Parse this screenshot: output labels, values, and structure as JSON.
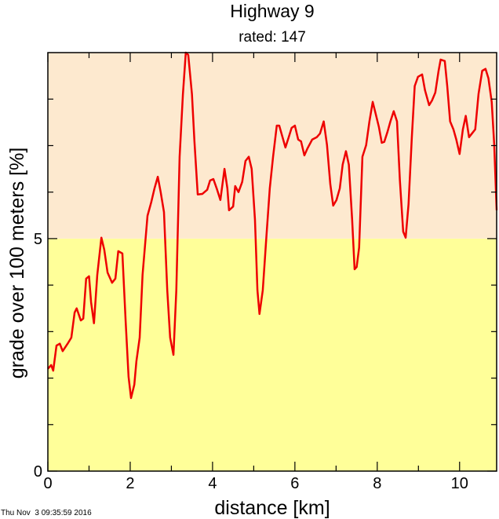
{
  "chart_data": {
    "type": "line",
    "title": "Highway 9",
    "subtitle": "rated: 147",
    "x_label": "distance [km]",
    "y_label": "grade over 100 meters [%]",
    "footer": "Thu Nov  3 09:35:59 2016",
    "xlim": [
      0,
      10.9
    ],
    "ylim": [
      0,
      9
    ],
    "xticks": [
      0,
      2,
      4,
      6,
      8,
      10
    ],
    "yticks": [
      0,
      5
    ],
    "x_minor_ticks": [
      1,
      3,
      5,
      7,
      9
    ],
    "y_minor_ticks": [
      1,
      2,
      3,
      4,
      6,
      7,
      8
    ],
    "bands": [
      {
        "from": 0,
        "to": 5,
        "color": "#ffff99"
      },
      {
        "from": 5,
        "to": 9,
        "color": "#fde9cf"
      }
    ],
    "color": "#ee0000",
    "x": [
      0,
      0.08,
      0.13,
      0.21,
      0.29,
      0.36,
      0.48,
      0.57,
      0.65,
      0.7,
      0.8,
      0.86,
      0.93,
      1.0,
      1.05,
      1.12,
      1.2,
      1.3,
      1.37,
      1.45,
      1.56,
      1.64,
      1.71,
      1.81,
      1.89,
      1.96,
      2.02,
      2.1,
      2.15,
      2.23,
      2.3,
      2.42,
      2.51,
      2.59,
      2.67,
      2.74,
      2.82,
      2.9,
      2.97,
      3.05,
      3.12,
      3.2,
      3.28,
      3.35,
      3.41,
      3.5,
      3.56,
      3.64,
      3.75,
      3.87,
      3.94,
      4.02,
      4.1,
      4.19,
      4.29,
      4.36,
      4.4,
      4.5,
      4.55,
      4.63,
      4.72,
      4.8,
      4.88,
      4.95,
      5.03,
      5.09,
      5.14,
      5.22,
      5.31,
      5.39,
      5.47,
      5.56,
      5.62,
      5.7,
      5.77,
      5.85,
      5.92,
      6.0,
      6.08,
      6.15,
      6.23,
      6.3,
      6.42,
      6.53,
      6.61,
      6.7,
      6.78,
      6.86,
      6.93,
      7.01,
      7.09,
      7.16,
      7.24,
      7.31,
      7.39,
      7.45,
      7.5,
      7.56,
      7.64,
      7.73,
      7.81,
      7.89,
      7.96,
      8.04,
      8.11,
      8.17,
      8.25,
      8.32,
      8.4,
      8.48,
      8.55,
      8.63,
      8.69,
      8.76,
      8.84,
      8.91,
      8.99,
      9.09,
      9.16,
      9.26,
      9.33,
      9.41,
      9.49,
      9.54,
      9.64,
      9.7,
      9.77,
      9.85,
      9.92,
      10.0,
      10.08,
      10.15,
      10.23,
      10.3,
      10.38,
      10.46,
      10.55,
      10.63,
      10.7,
      10.78,
      10.84,
      10.9
    ],
    "values": [
      2.2,
      2.28,
      2.16,
      2.7,
      2.74,
      2.58,
      2.74,
      2.87,
      3.41,
      3.5,
      3.24,
      3.28,
      4.14,
      4.19,
      3.63,
      3.18,
      4.22,
      5.02,
      4.76,
      4.27,
      4.05,
      4.14,
      4.73,
      4.68,
      3.21,
      2.03,
      1.57,
      1.86,
      2.36,
      2.87,
      4.22,
      5.49,
      5.78,
      6.08,
      6.33,
      6.0,
      5.57,
      3.89,
      2.87,
      2.5,
      3.89,
      6.76,
      8.1,
      9.0,
      8.95,
      8.1,
      7.09,
      5.95,
      5.96,
      6.05,
      6.25,
      6.28,
      6.08,
      5.83,
      6.5,
      6.08,
      5.61,
      5.69,
      6.13,
      6.0,
      6.22,
      6.67,
      6.76,
      6.5,
      5.41,
      3.89,
      3.38,
      3.89,
      5.07,
      6.08,
      6.76,
      7.43,
      7.43,
      7.18,
      6.96,
      7.18,
      7.38,
      7.43,
      7.13,
      7.09,
      6.79,
      6.93,
      7.13,
      7.18,
      7.26,
      7.52,
      7.01,
      6.17,
      5.71,
      5.83,
      6.08,
      6.59,
      6.88,
      6.59,
      5.41,
      4.34,
      4.39,
      4.81,
      6.76,
      7.01,
      7.52,
      7.94,
      7.69,
      7.4,
      7.06,
      7.08,
      7.3,
      7.52,
      7.74,
      7.52,
      6.25,
      5.15,
      5.02,
      5.74,
      7.18,
      8.28,
      8.48,
      8.53,
      8.19,
      7.87,
      7.97,
      8.14,
      8.61,
      8.85,
      8.82,
      8.28,
      7.52,
      7.35,
      7.13,
      6.82,
      7.35,
      7.64,
      7.18,
      7.26,
      7.35,
      8.11,
      8.61,
      8.65,
      8.45,
      7.94,
      7.04,
      5.61
    ]
  }
}
